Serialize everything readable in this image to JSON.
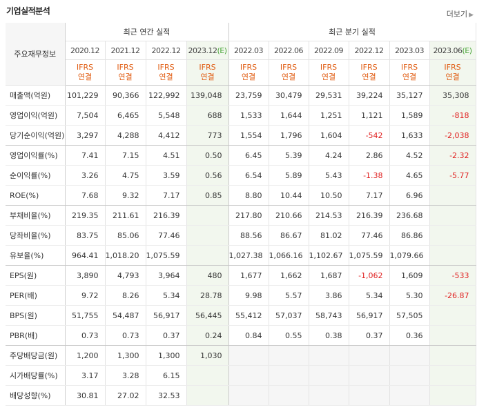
{
  "title": "기업실적분석",
  "more_label": "더보기",
  "header": {
    "row_header": "주요재무정보",
    "annual_label": "최근 연간 실적",
    "quarter_label": "최근 분기 실적",
    "annual_periods": [
      "2020.12",
      "2021.12",
      "2022.12",
      "2023.12"
    ],
    "quarter_periods": [
      "2022.03",
      "2022.06",
      "2022.09",
      "2022.12",
      "2023.03",
      "2023.06"
    ],
    "estimate_mark": "(E)",
    "ifrs": "IFRS",
    "consolidated": "연결"
  },
  "rows": [
    {
      "label": "매출액(억원)",
      "a": [
        "101,229",
        "90,366",
        "122,992",
        "139,048"
      ],
      "q": [
        "23,759",
        "30,479",
        "29,531",
        "39,224",
        "35,127",
        "35,308"
      ]
    },
    {
      "label": "영업이익(억원)",
      "a": [
        "7,504",
        "6,465",
        "5,548",
        "688"
      ],
      "q": [
        "1,533",
        "1,644",
        "1,251",
        "1,121",
        "1,589",
        "-818"
      ]
    },
    {
      "label": "당기순이익(억원)",
      "a": [
        "3,297",
        "4,288",
        "4,412",
        "773"
      ],
      "q": [
        "1,554",
        "1,796",
        "1,604",
        "-542",
        "1,633",
        "-2,038"
      ]
    },
    {
      "label": "영업이익률(%)",
      "a": [
        "7.41",
        "7.15",
        "4.51",
        "0.50"
      ],
      "q": [
        "6.45",
        "5.39",
        "4.24",
        "2.86",
        "4.52",
        "-2.32"
      ]
    },
    {
      "label": "순이익률(%)",
      "a": [
        "3.26",
        "4.75",
        "3.59",
        "0.56"
      ],
      "q": [
        "6.54",
        "5.89",
        "5.43",
        "-1.38",
        "4.65",
        "-5.77"
      ]
    },
    {
      "label": "ROE(%)",
      "a": [
        "7.68",
        "9.32",
        "7.17",
        "0.85"
      ],
      "q": [
        "8.80",
        "10.44",
        "10.50",
        "7.17",
        "6.96",
        ""
      ]
    },
    {
      "label": "부채비율(%)",
      "a": [
        "219.35",
        "211.61",
        "216.39",
        ""
      ],
      "q": [
        "217.80",
        "210.66",
        "214.53",
        "216.39",
        "236.68",
        ""
      ]
    },
    {
      "label": "당좌비율(%)",
      "a": [
        "83.75",
        "85.06",
        "77.46",
        ""
      ],
      "q": [
        "88.56",
        "86.67",
        "81.02",
        "77.46",
        "86.86",
        ""
      ]
    },
    {
      "label": "유보율(%)",
      "a": [
        "964.41",
        "1,018.20",
        "1,075.59",
        ""
      ],
      "q": [
        "1,027.38",
        "1,066.16",
        "1,102.67",
        "1,075.59",
        "1,079.66",
        ""
      ]
    },
    {
      "label": "EPS(원)",
      "a": [
        "3,890",
        "4,793",
        "3,964",
        "480"
      ],
      "q": [
        "1,677",
        "1,662",
        "1,687",
        "-1,062",
        "1,609",
        "-533"
      ]
    },
    {
      "label": "PER(배)",
      "a": [
        "9.72",
        "8.26",
        "5.34",
        "28.78"
      ],
      "q": [
        "9.98",
        "5.57",
        "3.86",
        "5.34",
        "5.30",
        "-26.87"
      ]
    },
    {
      "label": "BPS(원)",
      "a": [
        "51,755",
        "54,487",
        "56,917",
        "56,445"
      ],
      "q": [
        "55,412",
        "57,037",
        "58,743",
        "56,917",
        "57,505",
        ""
      ]
    },
    {
      "label": "PBR(배)",
      "a": [
        "0.73",
        "0.73",
        "0.37",
        "0.24"
      ],
      "q": [
        "0.84",
        "0.55",
        "0.38",
        "0.37",
        "0.36",
        ""
      ]
    },
    {
      "label": "주당배당금(원)",
      "a": [
        "1,200",
        "1,300",
        "1,300",
        "1,030"
      ],
      "q": [
        "",
        "",
        "",
        "",
        "",
        ""
      ]
    },
    {
      "label": "시가배당률(%)",
      "a": [
        "3.17",
        "3.28",
        "6.15",
        ""
      ],
      "q": [
        "",
        "",
        "",
        "",
        "",
        ""
      ]
    },
    {
      "label": "배당성향(%)",
      "a": [
        "30.81",
        "27.02",
        "32.53",
        ""
      ],
      "q": [
        "",
        "",
        "",
        "",
        "",
        ""
      ]
    }
  ],
  "group_end_rows": [
    2,
    5,
    8,
    12
  ],
  "colors": {
    "estimate_bg": "#f2f7ee",
    "negative": "#e01f1f",
    "ifrs": "#e05b10"
  }
}
